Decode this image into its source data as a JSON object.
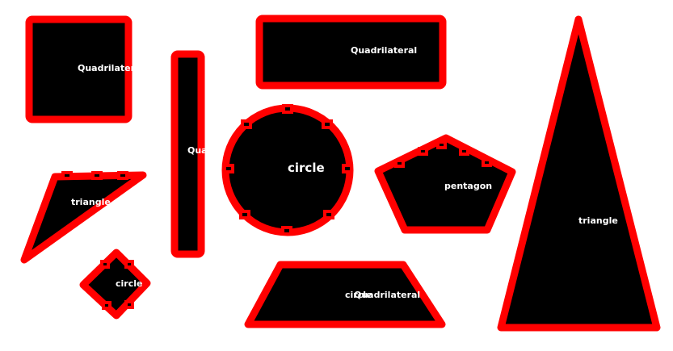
{
  "colors": {
    "fill": "#000000",
    "outline": "#ff0000",
    "label": "#ffffff",
    "background": "#ffffff"
  },
  "labels": {
    "rect_top_left": "Quadrilateral",
    "rect_tall": "Quadrilateral",
    "rect_wide": "Quadrilateral",
    "circle": "circle",
    "pentagon": "pentagon",
    "triangle_left": "triangle",
    "triangle_big": "triangle",
    "diamond": "circle",
    "trapezoid_a": "circle",
    "trapezoid_b": "Quadrilateral"
  }
}
